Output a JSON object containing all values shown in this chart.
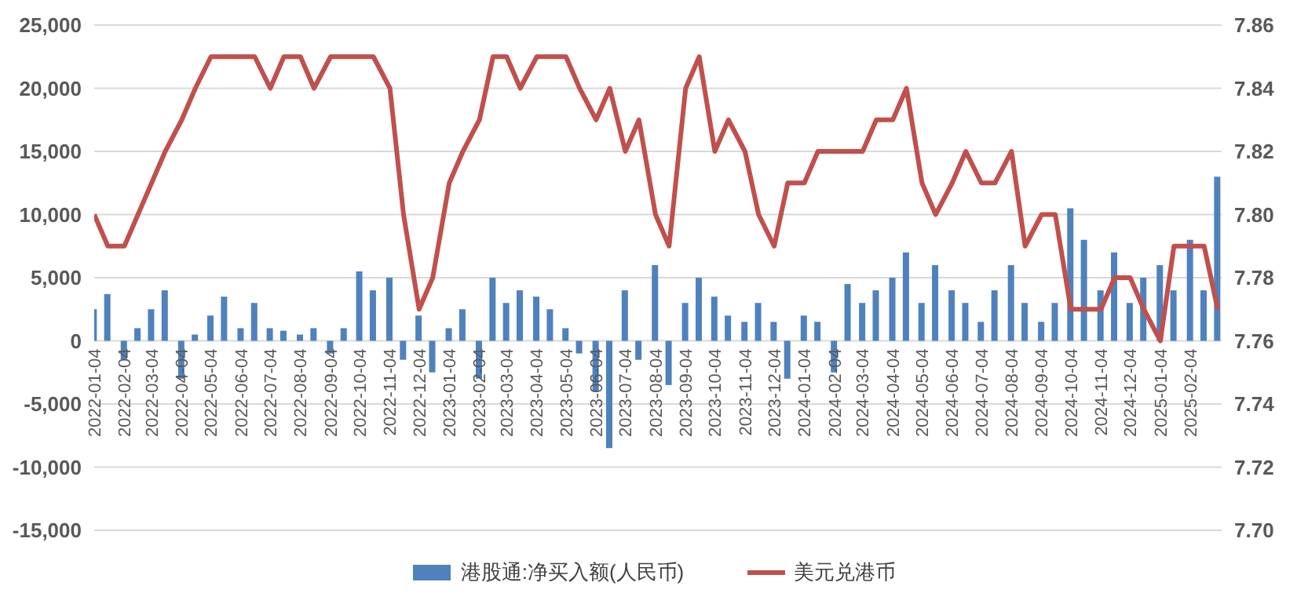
{
  "chart_data": {
    "type": "bar",
    "x": [
      "2022-01-04",
      "2022-01-18",
      "2022-02-04",
      "2022-02-18",
      "2022-03-04",
      "2022-03-18",
      "2022-04-04",
      "2022-04-18",
      "2022-05-04",
      "2022-05-18",
      "2022-06-04",
      "2022-06-18",
      "2022-07-04",
      "2022-07-18",
      "2022-08-04",
      "2022-08-18",
      "2022-09-04",
      "2022-09-18",
      "2022-10-04",
      "2022-10-18",
      "2022-11-04",
      "2022-11-18",
      "2022-12-04",
      "2022-12-18",
      "2023-01-04",
      "2023-01-18",
      "2023-02-04",
      "2023-02-18",
      "2023-03-04",
      "2023-03-18",
      "2023-04-04",
      "2023-04-18",
      "2023-05-04",
      "2023-05-18",
      "2023-06-04",
      "2023-06-18",
      "2023-07-04",
      "2023-07-18",
      "2023-08-04",
      "2023-08-18",
      "2023-09-04",
      "2023-09-18",
      "2023-10-04",
      "2023-10-18",
      "2023-11-04",
      "2023-11-18",
      "2023-12-04",
      "2023-12-18",
      "2024-01-04",
      "2024-01-18",
      "2024-02-04",
      "2024-02-18",
      "2024-03-04",
      "2024-03-18",
      "2024-04-04",
      "2024-04-18",
      "2024-05-04",
      "2024-05-18",
      "2024-06-04",
      "2024-06-18",
      "2024-07-04",
      "2024-07-18",
      "2024-08-04",
      "2024-08-18",
      "2024-09-04",
      "2024-09-18",
      "2024-10-04",
      "2024-10-18",
      "2024-11-04",
      "2024-11-18",
      "2024-12-04",
      "2024-12-18",
      "2025-01-04",
      "2025-01-18",
      "2025-02-04",
      "2025-02-18",
      "2025-03-04"
    ],
    "series": [
      {
        "name": "港股通:净买入额(人民币)",
        "color": "#4f81bd",
        "values": [
          2500,
          3700,
          -1500,
          1000,
          2500,
          4000,
          -3000,
          500,
          2000,
          3500,
          1000,
          3000,
          1000,
          800,
          500,
          1000,
          -1000,
          1000,
          5500,
          4000,
          5000,
          -1500,
          2000,
          -2500,
          1000,
          2500,
          -3000,
          5000,
          3000,
          4000,
          3500,
          2500,
          1000,
          -1000,
          -4000,
          -8500,
          4000,
          -1500,
          6000,
          -3500,
          3000,
          5000,
          3500,
          2000,
          1500,
          3000,
          1500,
          -3000,
          2000,
          1500,
          -2500,
          4500,
          3000,
          4000,
          5000,
          7000,
          3000,
          6000,
          4000,
          3000,
          1500,
          4000,
          6000,
          3000,
          1500,
          3000,
          10500,
          8000,
          4000,
          7000,
          3000,
          5000,
          6000,
          4000,
          8000,
          4000,
          13000
        ]
      },
      {
        "name": "美元兑港币",
        "type": "line",
        "axis": "y2",
        "color": "#c0504d",
        "values": [
          7.8,
          7.79,
          7.79,
          7.8,
          7.81,
          7.82,
          7.83,
          7.84,
          7.85,
          7.85,
          7.85,
          7.85,
          7.84,
          7.85,
          7.85,
          7.84,
          7.85,
          7.85,
          7.85,
          7.85,
          7.84,
          7.8,
          7.77,
          7.78,
          7.81,
          7.82,
          7.83,
          7.85,
          7.85,
          7.84,
          7.85,
          7.85,
          7.85,
          7.84,
          7.83,
          7.84,
          7.82,
          7.83,
          7.8,
          7.79,
          7.84,
          7.85,
          7.82,
          7.83,
          7.82,
          7.8,
          7.79,
          7.81,
          7.81,
          7.82,
          7.82,
          7.82,
          7.82,
          7.83,
          7.83,
          7.84,
          7.81,
          7.8,
          7.81,
          7.82,
          7.81,
          7.81,
          7.82,
          7.79,
          7.8,
          7.8,
          7.77,
          7.77,
          7.77,
          7.78,
          7.78,
          7.77,
          7.76,
          7.79,
          7.79,
          7.79,
          7.77
        ]
      }
    ],
    "xlim": [
      "2022-01-04",
      "2025-03-08"
    ],
    "xticks": [
      "2022-01-04",
      "2022-02-04",
      "2022-03-04",
      "2022-04-04",
      "2022-05-04",
      "2022-06-04",
      "2022-07-04",
      "2022-08-04",
      "2022-09-04",
      "2022-10-04",
      "2022-11-04",
      "2022-12-04",
      "2023-01-04",
      "2023-02-04",
      "2023-03-04",
      "2023-04-04",
      "2023-05-04",
      "2023-06-04",
      "2023-07-04",
      "2023-08-04",
      "2023-09-04",
      "2023-10-04",
      "2023-11-04",
      "2023-12-04",
      "2024-01-04",
      "2024-02-04",
      "2024-03-04",
      "2024-04-04",
      "2024-05-04",
      "2024-06-04",
      "2024-07-04",
      "2024-08-04",
      "2024-09-04",
      "2024-10-04",
      "2024-11-04",
      "2024-12-04",
      "2025-01-04",
      "2025-02-04"
    ],
    "ylim": [
      -15000,
      25000
    ],
    "yticks": [
      {
        "value": -15000,
        "label": "-15,000"
      },
      {
        "value": -10000,
        "label": "-10,000"
      },
      {
        "value": -5000,
        "label": "-5,000"
      },
      {
        "value": 0,
        "label": "0"
      },
      {
        "value": 5000,
        "label": "5,000"
      },
      {
        "value": 10000,
        "label": "10,000"
      },
      {
        "value": 15000,
        "label": "15,000"
      },
      {
        "value": 20000,
        "label": "20,000"
      },
      {
        "value": 25000,
        "label": "25,000"
      }
    ],
    "y2lim": [
      7.7,
      7.86
    ],
    "y2ticks": [
      {
        "value": 7.7,
        "label": "7.70"
      },
      {
        "value": 7.72,
        "label": "7.72"
      },
      {
        "value": 7.74,
        "label": "7.74"
      },
      {
        "value": 7.76,
        "label": "7.76"
      },
      {
        "value": 7.78,
        "label": "7.78"
      },
      {
        "value": 7.8,
        "label": "7.80"
      },
      {
        "value": 7.82,
        "label": "7.82"
      },
      {
        "value": 7.84,
        "label": "7.84"
      },
      {
        "value": 7.86,
        "label": "7.86"
      }
    ],
    "grid": "y",
    "legend": "bottom",
    "marker": "none",
    "line_style": "solid"
  }
}
